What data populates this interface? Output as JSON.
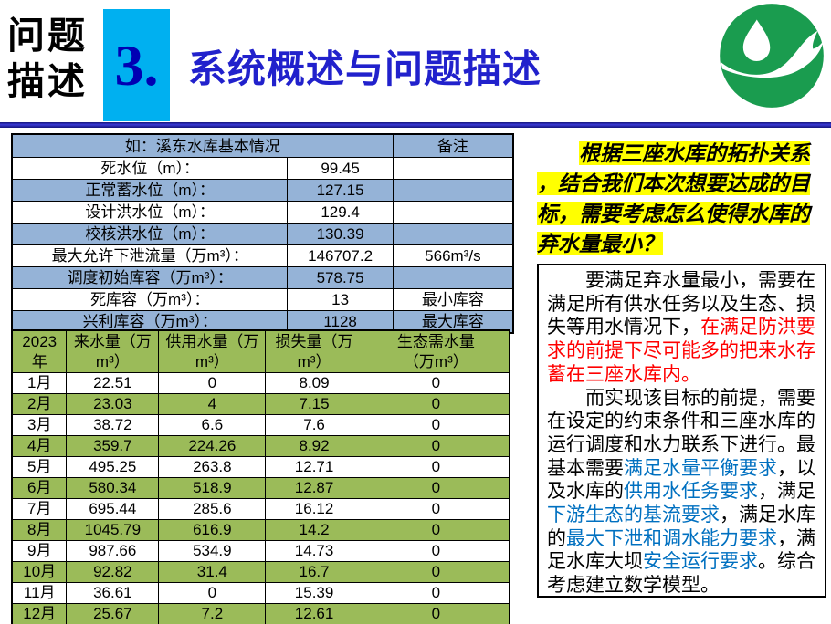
{
  "header": {
    "kicker": "问题\n描述",
    "section_number": "3.",
    "title": "系统概述与问题描述",
    "logo": "water-drop-hand-logo"
  },
  "colors": {
    "section_box_cyan": "#00B0F0",
    "section_number_blue": "#0000B3",
    "title_blue": "#2121CC",
    "divider_navy": "#22229B",
    "table_row_blue": "#95B3D7",
    "table_row_green": "#9BBB59",
    "highlight_yellow": "#FFFF00",
    "emphasis_red": "#FF0000",
    "emphasis_blue": "#0070C0",
    "logo_green": "#1A9C4F"
  },
  "reservoir_table": {
    "title": "如：溪东水库基本情况",
    "remark_header": "备注",
    "rows": [
      {
        "label": "死水位（m）：",
        "value": "99.45",
        "remark": ""
      },
      {
        "label": "正常蓄水位（m）：",
        "value": "127.15",
        "remark": ""
      },
      {
        "label": "设计洪水位（m）：",
        "value": "129.4",
        "remark": ""
      },
      {
        "label": "校核洪水位（m）：",
        "value": "130.39",
        "remark": ""
      },
      {
        "label": "最大允许下泄流量（万m³）：",
        "value": "146707.2",
        "remark": "566m³/s"
      },
      {
        "label": "调度初始库容（万m³）：",
        "value": "578.75",
        "remark": ""
      },
      {
        "label": "死库容（万m³）：",
        "value": "13",
        "remark": "最小库容"
      },
      {
        "label": "兴利库容（万m³）：",
        "value": "1128",
        "remark": "最大库容"
      }
    ]
  },
  "monthly_table": {
    "headers": [
      "2023\n年",
      "来水量（万\nm³）",
      "供用水量（万\nm³）",
      "损失量（万\nm³）",
      "生态需水量\n（万m³）"
    ],
    "rows": [
      [
        "1月",
        "22.51",
        "0",
        "8.09",
        "0"
      ],
      [
        "2月",
        "23.03",
        "4",
        "7.15",
        "0"
      ],
      [
        "3月",
        "38.72",
        "6.6",
        "7.6",
        "0"
      ],
      [
        "4月",
        "359.7",
        "224.26",
        "8.92",
        "0"
      ],
      [
        "5月",
        "495.25",
        "263.8",
        "12.71",
        "0"
      ],
      [
        "6月",
        "580.34",
        "518.9",
        "12.87",
        "0"
      ],
      [
        "7月",
        "695.44",
        "285.6",
        "16.12",
        "0"
      ],
      [
        "8月",
        "1045.79",
        "616.9",
        "14.2",
        "0"
      ],
      [
        "9月",
        "987.66",
        "534.9",
        "14.73",
        "0"
      ],
      [
        "10月",
        "92.82",
        "31.4",
        "16.7",
        "0"
      ],
      [
        "11月",
        "36.61",
        "0",
        "15.39",
        "0"
      ],
      [
        "12月",
        "25.67",
        "7.2",
        "12.61",
        "0"
      ]
    ]
  },
  "highlight_note": "根据三座水库的拓扑关系\n，结合我们本次想要达成的目\n标，需要考虑怎么使得水库的\n弃水量最小？",
  "description_box": {
    "paragraph1": [
      {
        "color": "black",
        "text": "要满足弃水量最小，需要在\n满足所有供水任务以及生态、损\n失等用水情况下，"
      },
      {
        "color": "red",
        "text": "在满足防洪要\n求的前提下尽可能多的把来水存\n蓄在三座水库内。"
      }
    ],
    "paragraph2": [
      {
        "color": "black",
        "text": "而实现该目标的前提，需要\n在设定的约束条件和三座水库的\n运行调度和水力联系下进行。最\n基本需要"
      },
      {
        "color": "blue",
        "text": "满足水量平衡要求"
      },
      {
        "color": "black",
        "text": "，以\n及水库的"
      },
      {
        "color": "blue",
        "text": "供用水任务要求"
      },
      {
        "color": "black",
        "text": "，满足\n"
      },
      {
        "color": "blue",
        "text": "下游生态的基流要求"
      },
      {
        "color": "black",
        "text": "，满足水库\n的"
      },
      {
        "color": "blue",
        "text": "最大下泄和调水能力要求"
      },
      {
        "color": "black",
        "text": "，满\n足水库大坝"
      },
      {
        "color": "blue",
        "text": "安全运行要求"
      },
      {
        "color": "black",
        "text": "。综合\n考虑建立数学模型。"
      }
    ]
  }
}
